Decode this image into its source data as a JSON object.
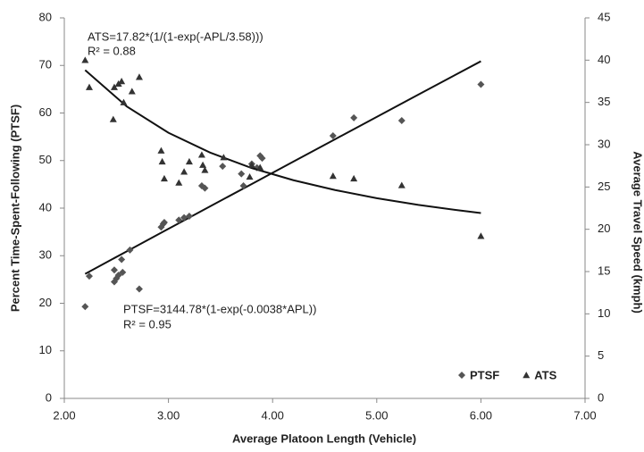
{
  "chart_data": {
    "type": "scatter",
    "x_label": "Average Platoon Length (Vehicle)",
    "y_label": "Percent Time-Spent-Following (PTSF)",
    "y2_label": "Average Travel Speed (kmph)",
    "xlim": [
      2,
      7
    ],
    "xticks": [
      {
        "value": 2,
        "label": "2.00"
      },
      {
        "value": 3,
        "label": "3.00"
      },
      {
        "value": 4,
        "label": "4.00"
      },
      {
        "value": 5,
        "label": "5.00"
      },
      {
        "value": 6,
        "label": "6.00"
      },
      {
        "value": 7,
        "label": "7.00"
      }
    ],
    "ylim": [
      0,
      80
    ],
    "yticks": [
      0,
      10,
      20,
      30,
      40,
      50,
      60,
      70,
      80
    ],
    "y2lim": [
      0,
      45
    ],
    "y2ticks": [
      0,
      5,
      10,
      15,
      20,
      25,
      30,
      35,
      40,
      45
    ],
    "legend": "bottom-right",
    "series": [
      {
        "name": "PTSF",
        "marker": "diamond",
        "color": "#555555",
        "x": [
          2.2,
          2.24,
          2.48,
          2.5,
          2.52,
          2.48,
          2.55,
          2.56,
          2.63,
          2.72,
          2.93,
          2.95,
          2.96,
          3.1,
          3.15,
          3.2,
          3.32,
          3.35,
          3.52,
          3.7,
          3.72,
          3.8,
          3.88,
          3.9,
          3.85,
          4.58,
          4.78,
          5.24,
          6.0
        ],
        "values": [
          19.3,
          25.7,
          24.5,
          25.2,
          25.9,
          27,
          29.2,
          26.5,
          31.2,
          23.0,
          36.0,
          36.7,
          37,
          37.5,
          38,
          38.3,
          44.7,
          44.2,
          48.8,
          47.2,
          44.7,
          49.3,
          51,
          50.5,
          48.5,
          55.2,
          59,
          58.4,
          66
        ],
        "fit": {
          "equation": "PTSF=3144.78*(1-exp(-0.0038*APL))",
          "r2": "R² = 0.95",
          "x": [
            2.2,
            2.6,
            3.0,
            3.4,
            3.8,
            4.2,
            4.6,
            5.0,
            5.4,
            5.8,
            6.0
          ],
          "values": [
            26.18,
            30.92,
            35.65,
            40.37,
            45.08,
            49.79,
            54.49,
            59.18,
            63.87,
            68.55,
            70.88
          ]
        }
      },
      {
        "name": "ATS",
        "marker": "triangle",
        "color": "#333333",
        "axis": "y2",
        "x": [
          2.2,
          2.24,
          2.47,
          2.48,
          2.52,
          2.55,
          2.57,
          2.65,
          2.72,
          2.93,
          2.94,
          2.96,
          3.1,
          3.15,
          3.2,
          3.32,
          3.33,
          3.35,
          3.53,
          3.78,
          3.8,
          3.88,
          4.58,
          4.78,
          5.24,
          6.0
        ],
        "values": [
          40,
          36.8,
          33,
          36.8,
          37.2,
          37.5,
          35,
          36.3,
          38,
          29.3,
          28,
          26,
          25.5,
          26.8,
          28,
          28.8,
          27.6,
          27,
          28.5,
          26.2,
          27.6,
          27.3,
          26.3,
          26,
          25.2,
          19.2
        ],
        "fit": {
          "equation": "ATS=17.82*(1/(1-exp(-APL/3.58)))",
          "r2": "R² = 0.88",
          "x": [
            2.2,
            2.6,
            3.0,
            3.4,
            3.8,
            4.2,
            4.6,
            5.0,
            5.4,
            5.8,
            6.0
          ],
          "values": [
            38.82,
            34.52,
            31.41,
            29.07,
            27.24,
            25.8,
            24.64,
            23.68,
            22.88,
            22.22,
            21.92
          ]
        }
      }
    ]
  }
}
